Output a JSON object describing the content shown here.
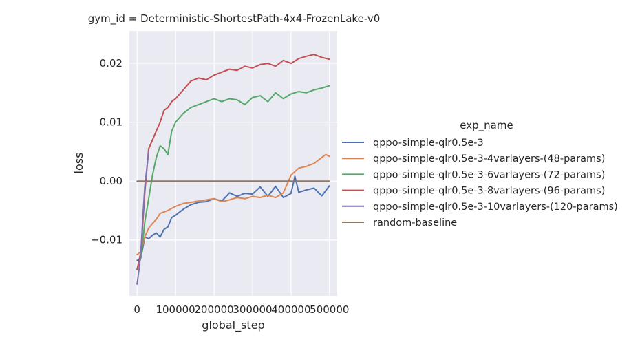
{
  "chart_data": {
    "type": "line",
    "title": "gym_id = Deterministic-ShortestPath-4x4-FrozenLake-v0",
    "xlabel": "global_step",
    "ylabel": "loss",
    "xlim": [
      -20000,
      520000
    ],
    "ylim": [
      -0.0195,
      0.0255
    ],
    "xticks": [
      0,
      100000,
      200000,
      300000,
      400000,
      500000
    ],
    "xtick_labels": [
      "0",
      "100000",
      "200000",
      "300000",
      "400000",
      "500000"
    ],
    "yticks": [
      -0.01,
      0.0,
      0.01,
      0.02
    ],
    "ytick_labels": [
      "−0.01",
      "0.00",
      "0.01",
      "0.02"
    ],
    "grid": true,
    "legend_title": "exp_name",
    "legend_position": "right outside",
    "series": [
      {
        "name": "qppo-simple-qlr0.5e-3",
        "color": "#4c72b0",
        "x": [
          0,
          10000,
          20000,
          30000,
          40000,
          50000,
          60000,
          70000,
          80000,
          90000,
          100000,
          120000,
          140000,
          160000,
          180000,
          200000,
          220000,
          240000,
          260000,
          280000,
          300000,
          320000,
          340000,
          360000,
          380000,
          400000,
          410000,
          420000,
          440000,
          460000,
          480000,
          500000
        ],
        "values": [
          -0.0135,
          -0.013,
          -0.0095,
          -0.0098,
          -0.0092,
          -0.0088,
          -0.0095,
          -0.0082,
          -0.0078,
          -0.0062,
          -0.0058,
          -0.0048,
          -0.004,
          -0.0036,
          -0.0035,
          -0.003,
          -0.0034,
          -0.002,
          -0.0026,
          -0.0021,
          -0.0022,
          -0.001,
          -0.0026,
          -0.0009,
          -0.0028,
          -0.0021,
          0.0008,
          -0.0019,
          -0.0015,
          -0.0012,
          -0.0025,
          -0.0008
        ]
      },
      {
        "name": "qppo-simple-qlr0.5e-3-4varlayers-(48-params)",
        "color": "#dd8452",
        "x": [
          0,
          10000,
          20000,
          30000,
          40000,
          50000,
          60000,
          80000,
          100000,
          120000,
          140000,
          160000,
          180000,
          200000,
          220000,
          240000,
          260000,
          280000,
          300000,
          320000,
          340000,
          360000,
          380000,
          400000,
          420000,
          440000,
          460000,
          480000,
          490000,
          500000
        ],
        "values": [
          -0.0125,
          -0.012,
          -0.0095,
          -0.008,
          -0.0072,
          -0.0065,
          -0.0055,
          -0.005,
          -0.0043,
          -0.0038,
          -0.0036,
          -0.0034,
          -0.0032,
          -0.003,
          -0.0035,
          -0.0032,
          -0.0028,
          -0.003,
          -0.0026,
          -0.0028,
          -0.0024,
          -0.0028,
          -0.002,
          0.001,
          0.0022,
          0.0025,
          0.003,
          0.004,
          0.0045,
          0.0042
        ]
      },
      {
        "name": "qppo-simple-qlr0.5e-3-6varlayers-(72-params)",
        "color": "#55a868",
        "x": [
          0,
          10000,
          20000,
          30000,
          40000,
          50000,
          60000,
          70000,
          80000,
          90000,
          100000,
          120000,
          140000,
          160000,
          180000,
          200000,
          220000,
          240000,
          260000,
          280000,
          300000,
          320000,
          340000,
          360000,
          380000,
          400000,
          420000,
          440000,
          460000,
          480000,
          500000
        ],
        "values": [
          -0.015,
          -0.013,
          -0.007,
          -0.003,
          0.001,
          0.004,
          0.006,
          0.0055,
          0.0045,
          0.0085,
          0.01,
          0.0115,
          0.0125,
          0.013,
          0.0135,
          0.014,
          0.0135,
          0.014,
          0.0138,
          0.013,
          0.0142,
          0.0145,
          0.0135,
          0.015,
          0.014,
          0.0148,
          0.0152,
          0.015,
          0.0155,
          0.0158,
          0.0162
        ]
      },
      {
        "name": "qppo-simple-qlr0.5e-3-8varlayers-(96-params)",
        "color": "#c44e52",
        "x": [
          0,
          10000,
          20000,
          30000,
          40000,
          50000,
          60000,
          70000,
          80000,
          90000,
          100000,
          120000,
          140000,
          160000,
          180000,
          200000,
          220000,
          240000,
          260000,
          280000,
          300000,
          320000,
          340000,
          360000,
          380000,
          400000,
          420000,
          440000,
          460000,
          480000,
          500000
        ],
        "values": [
          -0.015,
          -0.012,
          -0.002,
          0.0055,
          0.007,
          0.0085,
          0.01,
          0.012,
          0.0125,
          0.0135,
          0.014,
          0.0155,
          0.017,
          0.0175,
          0.0172,
          0.018,
          0.0185,
          0.019,
          0.0188,
          0.0195,
          0.0192,
          0.0198,
          0.02,
          0.0195,
          0.0205,
          0.02,
          0.0208,
          0.0212,
          0.0215,
          0.021,
          0.0207
        ]
      },
      {
        "name": "qppo-simple-qlr0.5e-3-10varlayers-(120-params)",
        "color": "#8172b3",
        "x": [
          0,
          5000,
          10000,
          15000,
          20000,
          25000,
          30000
        ],
        "values": [
          -0.0175,
          -0.015,
          -0.012,
          -0.006,
          -0.001,
          0.002,
          0.005
        ]
      },
      {
        "name": "random-baseline",
        "color": "#937860",
        "x": [
          0,
          500000
        ],
        "values": [
          0.0,
          0.0
        ]
      }
    ]
  }
}
